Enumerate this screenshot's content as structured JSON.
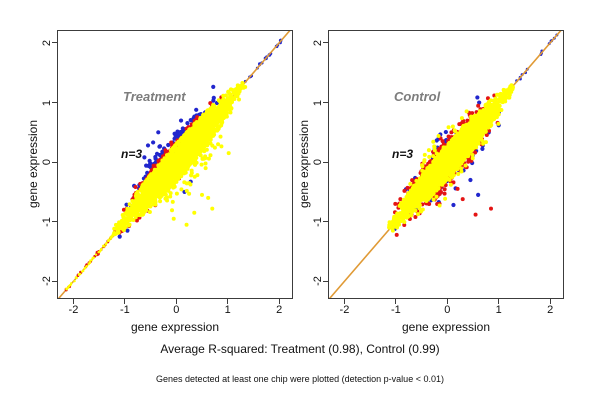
{
  "figure": {
    "caption": "Average R-squared: Treatment (0.98), Control (0.99)",
    "footnote": "Genes detected at least one chip were plotted (detection p-value < 0.01)",
    "background": "#ffffff"
  },
  "chart_data": {
    "type": "scatter",
    "layout": {
      "boxes": [
        [
          57,
          30,
          236,
          269
        ],
        [
          328,
          30,
          236,
          269
        ]
      ],
      "grid": false,
      "legend": "none",
      "frame_color": "#3c3c3c"
    },
    "colors": {
      "yellow": "#ffff00",
      "red": "#e41414",
      "blue": "#2126cd",
      "line": "#e09a35",
      "title_gray": "#7d7d7d"
    },
    "panels": [
      {
        "label": "Treatment",
        "annotation": "n=3",
        "r_squared": 0.98,
        "xlabel": "gene expression",
        "ylabel": "gene expression",
        "xlim": [
          -2.3,
          2.25
        ],
        "ylim": [
          -2.28,
          2.2
        ],
        "xticks": [
          -2,
          -1,
          0,
          1,
          2
        ],
        "yticks": [
          -2,
          -1,
          0,
          1,
          2
        ],
        "identity_line": "y = x",
        "point_layers": [
          {
            "kind": "tail",
            "color": "blue",
            "n": 26,
            "t_min": 1.3,
            "t_max": 2.17,
            "dsd": 0.013,
            "r": 1.5,
            "seed": 11
          },
          {
            "kind": "line"
          },
          {
            "kind": "fringe",
            "color": "blue",
            "n": 135,
            "t_mean": 0.12,
            "t_sd": 0.42,
            "t_min": -1.03,
            "t_max": 1.06,
            "side": 1,
            "w": 0.3,
            "d0": 0.75,
            "dsd": 0.17,
            "r": 2.1,
            "seed": 21
          },
          {
            "kind": "points",
            "color": "blue",
            "r": 2.1,
            "pts": [
              [
                -0.55,
                0.28
              ],
              [
                -0.35,
                0.5
              ],
              [
                -0.62,
                0.08
              ],
              [
                -0.45,
                0.33
              ],
              [
                0.16,
                -0.5
              ],
              [
                0.28,
                -0.33
              ],
              [
                -1.1,
                -1.25
              ],
              [
                -0.95,
                -1.15
              ]
            ]
          },
          {
            "kind": "fringe",
            "color": "red",
            "n": 115,
            "t_mean": 0.05,
            "t_sd": 0.45,
            "t_min": -1.1,
            "t_max": 1.02,
            "side": 1,
            "w": 0.3,
            "d0": 0.9,
            "dsd": 0.055,
            "r": 2.0,
            "seed": 31
          },
          {
            "kind": "fringe",
            "color": "red",
            "n": 16,
            "t_mean": -0.3,
            "t_sd": 0.5,
            "t_min": -1.15,
            "t_max": 0.5,
            "side": -1,
            "w": 0.3,
            "d0": 0.85,
            "dsd": 0.06,
            "r": 2.0,
            "seed": 32
          },
          {
            "kind": "tail",
            "color": "red",
            "n": 38,
            "t_min": -2.16,
            "t_max": -1.05,
            "dsd": 0.016,
            "r": 1.4,
            "seed": 33
          },
          {
            "kind": "fringe",
            "color": "yellow",
            "n": 110,
            "t_mean": 0.1,
            "t_sd": 0.4,
            "t_min": -0.75,
            "t_max": 0.95,
            "side": -1,
            "w": 0.3,
            "d0": 0.7,
            "dsd": 0.25,
            "r": 2.0,
            "seed": 41
          },
          {
            "kind": "points",
            "color": "yellow",
            "r": 2.0,
            "pts": [
              [
                0.7,
                -0.78
              ],
              [
                0.2,
                -1.05
              ],
              [
                0.35,
                -0.85
              ],
              [
                -0.05,
                -0.95
              ],
              [
                0.5,
                -0.55
              ],
              [
                0.62,
                -0.6
              ]
            ]
          },
          {
            "kind": "band",
            "color": "yellow",
            "n": 2400,
            "t_mean": 0.07,
            "t_sd": 0.5,
            "t_min": -1.22,
            "t_max": 1.31,
            "w": 0.3,
            "r": 2.0,
            "seed": 43
          },
          {
            "kind": "tail",
            "color": "yellow",
            "n": 60,
            "t_min": -2.14,
            "t_max": -1.1,
            "dsd": 0.01,
            "r": 1.2,
            "seed": 44
          }
        ]
      },
      {
        "label": "Control",
        "annotation": "n=3",
        "r_squared": 0.99,
        "xlabel": "gene expression",
        "ylabel": "gene expression",
        "xlim": [
          -2.3,
          2.25
        ],
        "ylim": [
          -2.28,
          2.2
        ],
        "xticks": [
          -2,
          -1,
          0,
          1,
          2
        ],
        "yticks": [
          -2,
          -1,
          0,
          1,
          2
        ],
        "identity_line": "y = x",
        "point_layers": [
          {
            "kind": "tail",
            "color": "blue",
            "n": 14,
            "t_min": 1.28,
            "t_max": 2.15,
            "dsd": 0.013,
            "r": 1.5,
            "seed": 51
          },
          {
            "kind": "line"
          },
          {
            "kind": "fringe",
            "color": "blue",
            "n": 85,
            "t_mean": 0.05,
            "t_sd": 0.42,
            "t_min": -1.05,
            "t_max": 0.98,
            "side": 0,
            "w": 0.28,
            "d0": 0.8,
            "dsd": 0.15,
            "r": 2.1,
            "seed": 61
          },
          {
            "kind": "points",
            "color": "blue",
            "r": 2.1,
            "pts": [
              [
                0.6,
                -0.55
              ],
              [
                0.12,
                -0.72
              ],
              [
                0.45,
                -0.3
              ],
              [
                -1.02,
                -1.12
              ]
            ]
          },
          {
            "kind": "fringe",
            "color": "red",
            "n": 250,
            "t_mean": 0.02,
            "t_sd": 0.45,
            "t_min": -1.12,
            "t_max": 1.02,
            "side": 0,
            "w": 0.28,
            "d0": 0.85,
            "dsd": 0.1,
            "r": 2.0,
            "seed": 71
          },
          {
            "kind": "points",
            "color": "red",
            "r": 2.0,
            "pts": [
              [
                0.55,
                -0.88
              ],
              [
                0.85,
                -0.78
              ],
              [
                0.3,
                -0.62
              ],
              [
                0.2,
                -0.45
              ],
              [
                -0.15,
                -0.7
              ],
              [
                -1.0,
                -0.93
              ],
              [
                -1.1,
                -1.05
              ]
            ]
          },
          {
            "kind": "fringe",
            "color": "yellow",
            "n": 70,
            "t_mean": 0.05,
            "t_sd": 0.42,
            "t_min": -0.8,
            "t_max": 0.9,
            "side": 0,
            "w": 0.28,
            "d0": 0.95,
            "dsd": 0.15,
            "r": 2.0,
            "seed": 81
          },
          {
            "kind": "band",
            "color": "yellow",
            "n": 2400,
            "t_mean": 0.05,
            "t_sd": 0.5,
            "t_min": -1.12,
            "t_max": 1.27,
            "w": 0.28,
            "r": 2.0,
            "seed": 82
          }
        ]
      }
    ]
  }
}
